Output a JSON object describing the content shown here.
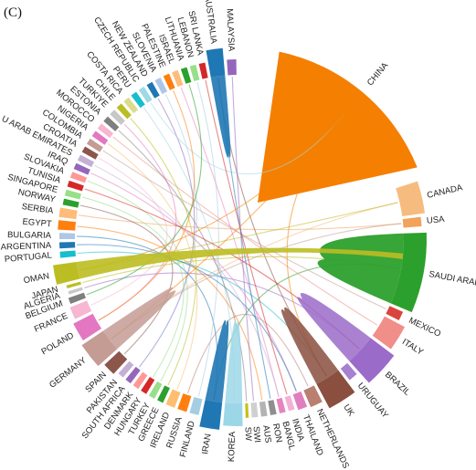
{
  "panel_label": "(C)",
  "nodes": [
    {
      "label": "CHINA",
      "color": "#f57f00"
    },
    {
      "label": "CANADA",
      "color": "#f6bb7e"
    },
    {
      "label": "USA",
      "color": "#f1a35c"
    },
    {
      "label": "SAUDI ARABIA",
      "color": "#f1a5a0"
    },
    {
      "label": "MEXICO",
      "color": "#d9443f"
    },
    {
      "label": "ITALY",
      "color": "#f08e8a"
    },
    {
      "label": "BRAZIL",
      "color": "#9b6bc9"
    },
    {
      "label": "URUGUAY",
      "color": "#a880cf"
    },
    {
      "label": "UK",
      "color": "#8a4f3e"
    },
    {
      "label": "NETHERLANDS",
      "color": "#b98072"
    },
    {
      "label": "THAILAND",
      "color": "#e07fc0"
    },
    {
      "label": "INDIA",
      "color": "#f3b0d6"
    },
    {
      "label": "BANGL",
      "color": "#e684bf"
    },
    {
      "label": "RON",
      "color": "#8f8f8f"
    },
    {
      "label": "AUS",
      "color": "#b3b3b3"
    },
    {
      "label": "SWI",
      "color": "#cfcfcf"
    },
    {
      "label": "SW",
      "color": "#c4c31c"
    },
    {
      "label": "KOREA",
      "color": "#9cd7e8"
    },
    {
      "label": "IRAN",
      "color": "#1f77b4"
    },
    {
      "label": "FINLAND",
      "color": "#a6cee3"
    },
    {
      "label": "RUSSIA",
      "color": "#ff7f0e"
    },
    {
      "label": "IRELAND",
      "color": "#fdbf6f"
    },
    {
      "label": "GREECE",
      "color": "#2ca02c"
    },
    {
      "label": "TURKEY",
      "color": "#98df8a"
    },
    {
      "label": "HUNGARY",
      "color": "#d62728"
    },
    {
      "label": "DENMARK",
      "color": "#ff9896"
    },
    {
      "label": "SOUTH AFRICA",
      "color": "#9467bd"
    },
    {
      "label": "PAKISTAN",
      "color": "#c5b0d5"
    },
    {
      "label": "SPAIN",
      "color": "#8c564b"
    },
    {
      "label": "GERMANY",
      "color": "#c49c94"
    },
    {
      "label": "POLAND",
      "color": "#e377c2"
    },
    {
      "label": "FRANCE",
      "color": "#f7b6d2"
    },
    {
      "label": "BELGIUM",
      "color": "#7f7f7f"
    },
    {
      "label": "ALGERIA",
      "color": "#c7c7c7"
    },
    {
      "label": "JAPAN",
      "color": "#bcbd22"
    },
    {
      "label": "OMAN",
      "color": "#bcbd22"
    },
    {
      "label": "PORTUGAL",
      "color": "#17becf"
    },
    {
      "label": "ARGENTINA",
      "color": "#1f77b4"
    },
    {
      "label": "BULGARIA",
      "color": "#aec7e8"
    },
    {
      "label": "EGYPT",
      "color": "#ff7f0e"
    },
    {
      "label": "SERBIA",
      "color": "#ffbb78"
    },
    {
      "label": "NORWAY",
      "color": "#2ca02c"
    },
    {
      "label": "SINGAPORE",
      "color": "#98df8a"
    },
    {
      "label": "TUNISIA",
      "color": "#d62728"
    },
    {
      "label": "SLOVAKIA",
      "color": "#ff9896"
    },
    {
      "label": "IRAQ",
      "color": "#9467bd"
    },
    {
      "label": "U ARAB EMIRATES",
      "color": "#c5b0d5"
    },
    {
      "label": "CROATIA",
      "color": "#8c564b"
    },
    {
      "label": "COLOMBIA",
      "color": "#c49c94"
    },
    {
      "label": "NIGERIA",
      "color": "#e377c2"
    },
    {
      "label": "MOROCCO",
      "color": "#f7b6d2"
    },
    {
      "label": "ESTONIA",
      "color": "#7f7f7f"
    },
    {
      "label": "TURKIYE",
      "color": "#c7c7c7"
    },
    {
      "label": "CHILE",
      "color": "#bcbd22"
    },
    {
      "label": "COSTA RICA",
      "color": "#dbdb8d"
    },
    {
      "label": "PERU",
      "color": "#17becf"
    },
    {
      "label": "CZECH REPUBLIC",
      "color": "#9edae5"
    },
    {
      "label": "NEW ZEALAND",
      "color": "#1f77b4"
    },
    {
      "label": "SLOVENIA",
      "color": "#aec7e8"
    },
    {
      "label": "PALESTINE",
      "color": "#ff7f0e"
    },
    {
      "label": "ISRAEL",
      "color": "#ffbb78"
    },
    {
      "label": "LITHUANIA",
      "color": "#2ca02c"
    },
    {
      "label": "LEBANON",
      "color": "#98df8a"
    },
    {
      "label": "SRI LANKA",
      "color": "#d62728"
    },
    {
      "label": "AUSTRALIA",
      "color": "#1f77b4"
    },
    {
      "label": "MALAYSIA",
      "color": "#9467bd"
    }
  ]
}
